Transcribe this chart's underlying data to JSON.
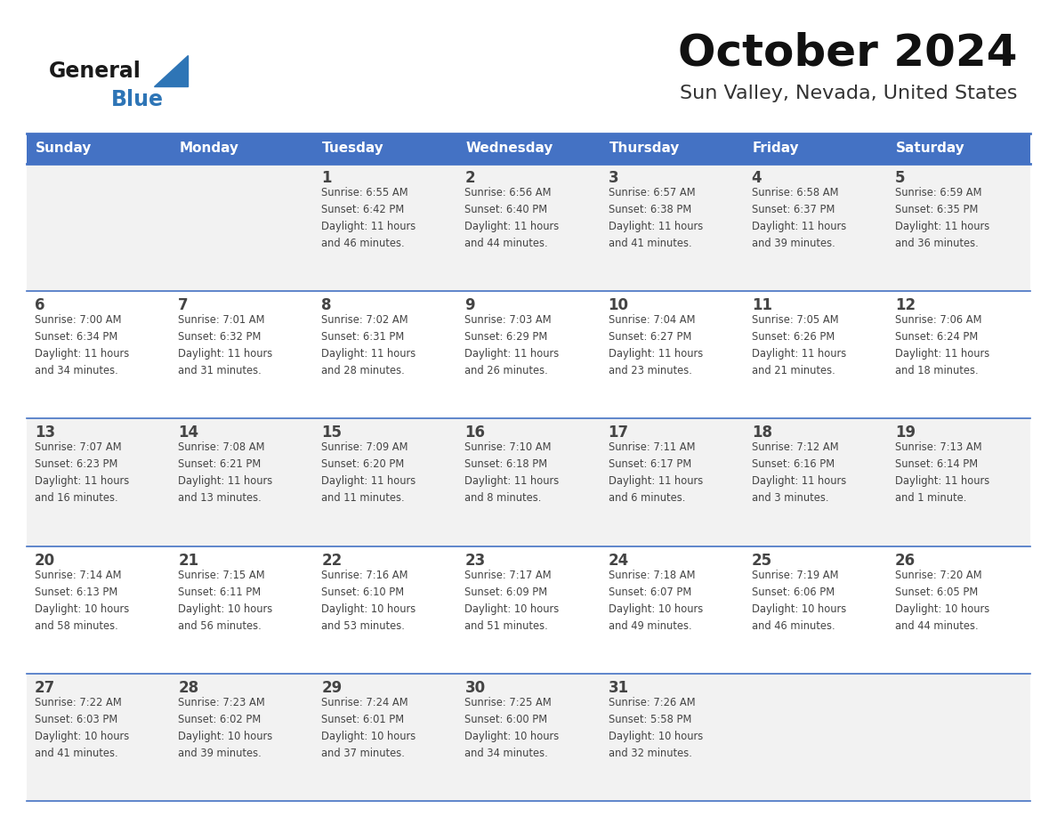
{
  "title": "October 2024",
  "subtitle": "Sun Valley, Nevada, United States",
  "days_of_week": [
    "Sunday",
    "Monday",
    "Tuesday",
    "Wednesday",
    "Thursday",
    "Friday",
    "Saturday"
  ],
  "header_bg": "#4472C4",
  "header_text": "#FFFFFF",
  "row_bg_light": "#F2F2F2",
  "row_bg_white": "#FFFFFF",
  "text_color": "#444444",
  "border_color": "#4472C4",
  "separator_color": "#4472C4",
  "logo_general_color": "#1a1a1a",
  "logo_blue_color": "#2E75B6",
  "logo_triangle_color": "#2E75B6",
  "calendar": [
    [
      {
        "day": "",
        "info": ""
      },
      {
        "day": "",
        "info": ""
      },
      {
        "day": "1",
        "info": "Sunrise: 6:55 AM\nSunset: 6:42 PM\nDaylight: 11 hours\nand 46 minutes."
      },
      {
        "day": "2",
        "info": "Sunrise: 6:56 AM\nSunset: 6:40 PM\nDaylight: 11 hours\nand 44 minutes."
      },
      {
        "day": "3",
        "info": "Sunrise: 6:57 AM\nSunset: 6:38 PM\nDaylight: 11 hours\nand 41 minutes."
      },
      {
        "day": "4",
        "info": "Sunrise: 6:58 AM\nSunset: 6:37 PM\nDaylight: 11 hours\nand 39 minutes."
      },
      {
        "day": "5",
        "info": "Sunrise: 6:59 AM\nSunset: 6:35 PM\nDaylight: 11 hours\nand 36 minutes."
      }
    ],
    [
      {
        "day": "6",
        "info": "Sunrise: 7:00 AM\nSunset: 6:34 PM\nDaylight: 11 hours\nand 34 minutes."
      },
      {
        "day": "7",
        "info": "Sunrise: 7:01 AM\nSunset: 6:32 PM\nDaylight: 11 hours\nand 31 minutes."
      },
      {
        "day": "8",
        "info": "Sunrise: 7:02 AM\nSunset: 6:31 PM\nDaylight: 11 hours\nand 28 minutes."
      },
      {
        "day": "9",
        "info": "Sunrise: 7:03 AM\nSunset: 6:29 PM\nDaylight: 11 hours\nand 26 minutes."
      },
      {
        "day": "10",
        "info": "Sunrise: 7:04 AM\nSunset: 6:27 PM\nDaylight: 11 hours\nand 23 minutes."
      },
      {
        "day": "11",
        "info": "Sunrise: 7:05 AM\nSunset: 6:26 PM\nDaylight: 11 hours\nand 21 minutes."
      },
      {
        "day": "12",
        "info": "Sunrise: 7:06 AM\nSunset: 6:24 PM\nDaylight: 11 hours\nand 18 minutes."
      }
    ],
    [
      {
        "day": "13",
        "info": "Sunrise: 7:07 AM\nSunset: 6:23 PM\nDaylight: 11 hours\nand 16 minutes."
      },
      {
        "day": "14",
        "info": "Sunrise: 7:08 AM\nSunset: 6:21 PM\nDaylight: 11 hours\nand 13 minutes."
      },
      {
        "day": "15",
        "info": "Sunrise: 7:09 AM\nSunset: 6:20 PM\nDaylight: 11 hours\nand 11 minutes."
      },
      {
        "day": "16",
        "info": "Sunrise: 7:10 AM\nSunset: 6:18 PM\nDaylight: 11 hours\nand 8 minutes."
      },
      {
        "day": "17",
        "info": "Sunrise: 7:11 AM\nSunset: 6:17 PM\nDaylight: 11 hours\nand 6 minutes."
      },
      {
        "day": "18",
        "info": "Sunrise: 7:12 AM\nSunset: 6:16 PM\nDaylight: 11 hours\nand 3 minutes."
      },
      {
        "day": "19",
        "info": "Sunrise: 7:13 AM\nSunset: 6:14 PM\nDaylight: 11 hours\nand 1 minute."
      }
    ],
    [
      {
        "day": "20",
        "info": "Sunrise: 7:14 AM\nSunset: 6:13 PM\nDaylight: 10 hours\nand 58 minutes."
      },
      {
        "day": "21",
        "info": "Sunrise: 7:15 AM\nSunset: 6:11 PM\nDaylight: 10 hours\nand 56 minutes."
      },
      {
        "day": "22",
        "info": "Sunrise: 7:16 AM\nSunset: 6:10 PM\nDaylight: 10 hours\nand 53 minutes."
      },
      {
        "day": "23",
        "info": "Sunrise: 7:17 AM\nSunset: 6:09 PM\nDaylight: 10 hours\nand 51 minutes."
      },
      {
        "day": "24",
        "info": "Sunrise: 7:18 AM\nSunset: 6:07 PM\nDaylight: 10 hours\nand 49 minutes."
      },
      {
        "day": "25",
        "info": "Sunrise: 7:19 AM\nSunset: 6:06 PM\nDaylight: 10 hours\nand 46 minutes."
      },
      {
        "day": "26",
        "info": "Sunrise: 7:20 AM\nSunset: 6:05 PM\nDaylight: 10 hours\nand 44 minutes."
      }
    ],
    [
      {
        "day": "27",
        "info": "Sunrise: 7:22 AM\nSunset: 6:03 PM\nDaylight: 10 hours\nand 41 minutes."
      },
      {
        "day": "28",
        "info": "Sunrise: 7:23 AM\nSunset: 6:02 PM\nDaylight: 10 hours\nand 39 minutes."
      },
      {
        "day": "29",
        "info": "Sunrise: 7:24 AM\nSunset: 6:01 PM\nDaylight: 10 hours\nand 37 minutes."
      },
      {
        "day": "30",
        "info": "Sunrise: 7:25 AM\nSunset: 6:00 PM\nDaylight: 10 hours\nand 34 minutes."
      },
      {
        "day": "31",
        "info": "Sunrise: 7:26 AM\nSunset: 5:58 PM\nDaylight: 10 hours\nand 32 minutes."
      },
      {
        "day": "",
        "info": ""
      },
      {
        "day": "",
        "info": ""
      }
    ]
  ]
}
